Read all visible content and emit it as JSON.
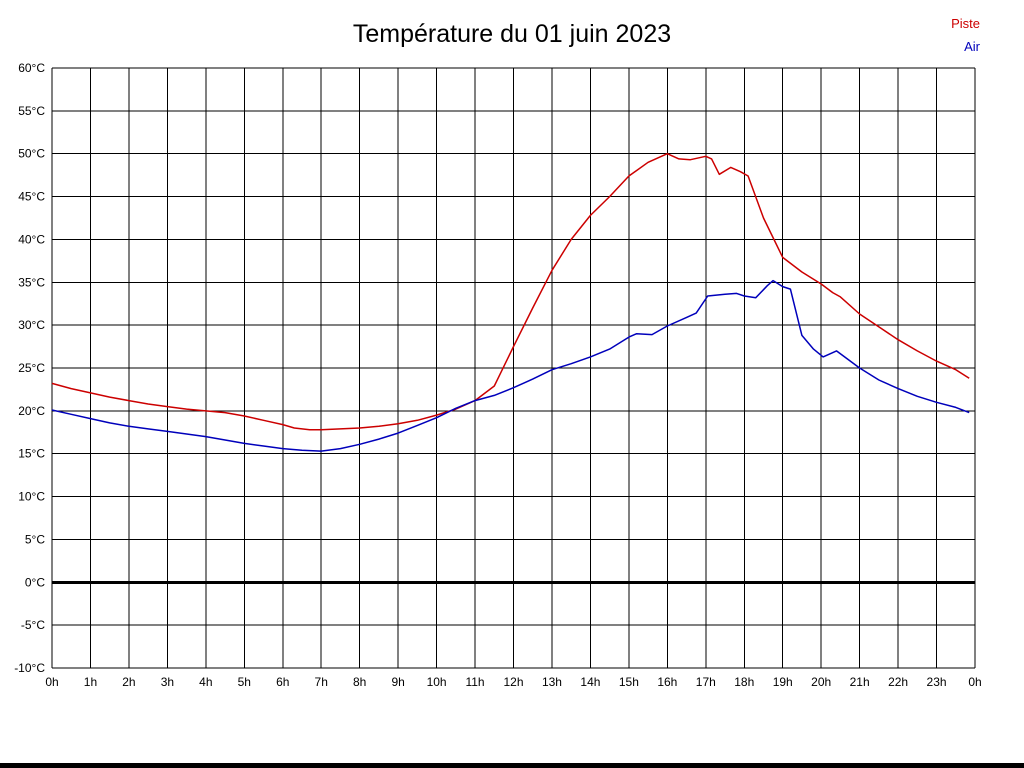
{
  "chart_data": {
    "type": "line",
    "title": "Température du 01 juin 2023",
    "xlabel": "",
    "ylabel": "",
    "xlim": [
      0,
      24
    ],
    "ylim": [
      -10,
      60
    ],
    "y_tick_step": 5,
    "y_tick_suffix": "°C",
    "x_tick_labels": [
      "0h",
      "1h",
      "2h",
      "3h",
      "4h",
      "5h",
      "6h",
      "7h",
      "8h",
      "9h",
      "10h",
      "11h",
      "12h",
      "13h",
      "14h",
      "15h",
      "16h",
      "17h",
      "18h",
      "19h",
      "20h",
      "21h",
      "22h",
      "23h",
      "0h"
    ],
    "grid": true,
    "legend_position": "top-right",
    "zero_line": {
      "value": 0,
      "width": 3,
      "color": "#000000"
    },
    "colors": {
      "grid": "#000000",
      "background": "#ffffff",
      "title": "#000000",
      "tick_labels": "#000000"
    },
    "series": [
      {
        "name": "Piste",
        "color": "#cc0000",
        "points": [
          [
            0,
            23.2
          ],
          [
            0.5,
            22.6
          ],
          [
            1,
            22.1
          ],
          [
            1.5,
            21.6
          ],
          [
            2,
            21.2
          ],
          [
            2.5,
            20.8
          ],
          [
            3,
            20.5
          ],
          [
            3.5,
            20.2
          ],
          [
            4,
            20.0
          ],
          [
            4.5,
            19.8
          ],
          [
            5,
            19.4
          ],
          [
            5.5,
            18.9
          ],
          [
            6,
            18.4
          ],
          [
            6.3,
            18.0
          ],
          [
            6.7,
            17.8
          ],
          [
            7,
            17.8
          ],
          [
            7.5,
            17.9
          ],
          [
            8,
            18.0
          ],
          [
            8.5,
            18.2
          ],
          [
            9,
            18.5
          ],
          [
            9.5,
            18.9
          ],
          [
            10,
            19.5
          ],
          [
            10.5,
            20.2
          ],
          [
            11,
            21.2
          ],
          [
            11.5,
            22.9
          ],
          [
            12,
            27.5
          ],
          [
            12.5,
            32.0
          ],
          [
            13,
            36.4
          ],
          [
            13.5,
            40.0
          ],
          [
            14,
            42.8
          ],
          [
            14.5,
            45.0
          ],
          [
            15,
            47.4
          ],
          [
            15.5,
            49.0
          ],
          [
            16,
            50.0
          ],
          [
            16.3,
            49.4
          ],
          [
            16.6,
            49.3
          ],
          [
            17,
            49.7
          ],
          [
            17.15,
            49.4
          ],
          [
            17.35,
            47.6
          ],
          [
            17.65,
            48.4
          ],
          [
            17.9,
            47.9
          ],
          [
            18.1,
            47.4
          ],
          [
            18.5,
            42.5
          ],
          [
            19,
            37.9
          ],
          [
            19.5,
            36.2
          ],
          [
            20,
            34.8
          ],
          [
            20.3,
            33.8
          ],
          [
            20.5,
            33.3
          ],
          [
            21,
            31.3
          ],
          [
            21.5,
            29.8
          ],
          [
            22,
            28.3
          ],
          [
            22.5,
            27.0
          ],
          [
            23,
            25.8
          ],
          [
            23.5,
            24.8
          ],
          [
            23.85,
            23.8
          ]
        ]
      },
      {
        "name": "Air",
        "color": "#0000bb",
        "points": [
          [
            0,
            20.1
          ],
          [
            0.5,
            19.6
          ],
          [
            1,
            19.1
          ],
          [
            1.5,
            18.6
          ],
          [
            2,
            18.2
          ],
          [
            2.5,
            17.9
          ],
          [
            3,
            17.6
          ],
          [
            3.5,
            17.3
          ],
          [
            4,
            17.0
          ],
          [
            4.5,
            16.6
          ],
          [
            5,
            16.2
          ],
          [
            5.5,
            15.9
          ],
          [
            6,
            15.6
          ],
          [
            6.5,
            15.4
          ],
          [
            7,
            15.3
          ],
          [
            7.5,
            15.6
          ],
          [
            8,
            16.1
          ],
          [
            8.5,
            16.7
          ],
          [
            9,
            17.4
          ],
          [
            9.5,
            18.3
          ],
          [
            10,
            19.2
          ],
          [
            10.5,
            20.3
          ],
          [
            11,
            21.2
          ],
          [
            11.5,
            21.8
          ],
          [
            12,
            22.7
          ],
          [
            12.5,
            23.7
          ],
          [
            13,
            24.8
          ],
          [
            13.5,
            25.5
          ],
          [
            14,
            26.3
          ],
          [
            14.5,
            27.2
          ],
          [
            15,
            28.6
          ],
          [
            15.2,
            29.0
          ],
          [
            15.6,
            28.9
          ],
          [
            16,
            29.9
          ],
          [
            16.5,
            30.9
          ],
          [
            16.75,
            31.4
          ],
          [
            17.05,
            33.4
          ],
          [
            17.5,
            33.6
          ],
          [
            17.8,
            33.7
          ],
          [
            18,
            33.4
          ],
          [
            18.3,
            33.2
          ],
          [
            18.6,
            34.6
          ],
          [
            18.75,
            35.2
          ],
          [
            19,
            34.5
          ],
          [
            19.2,
            34.2
          ],
          [
            19.5,
            28.8
          ],
          [
            19.8,
            27.2
          ],
          [
            20.05,
            26.3
          ],
          [
            20.4,
            27.0
          ],
          [
            21,
            25.0
          ],
          [
            21.5,
            23.6
          ],
          [
            22,
            22.6
          ],
          [
            22.5,
            21.7
          ],
          [
            23,
            21.0
          ],
          [
            23.5,
            20.4
          ],
          [
            23.85,
            19.8
          ]
        ]
      }
    ]
  }
}
